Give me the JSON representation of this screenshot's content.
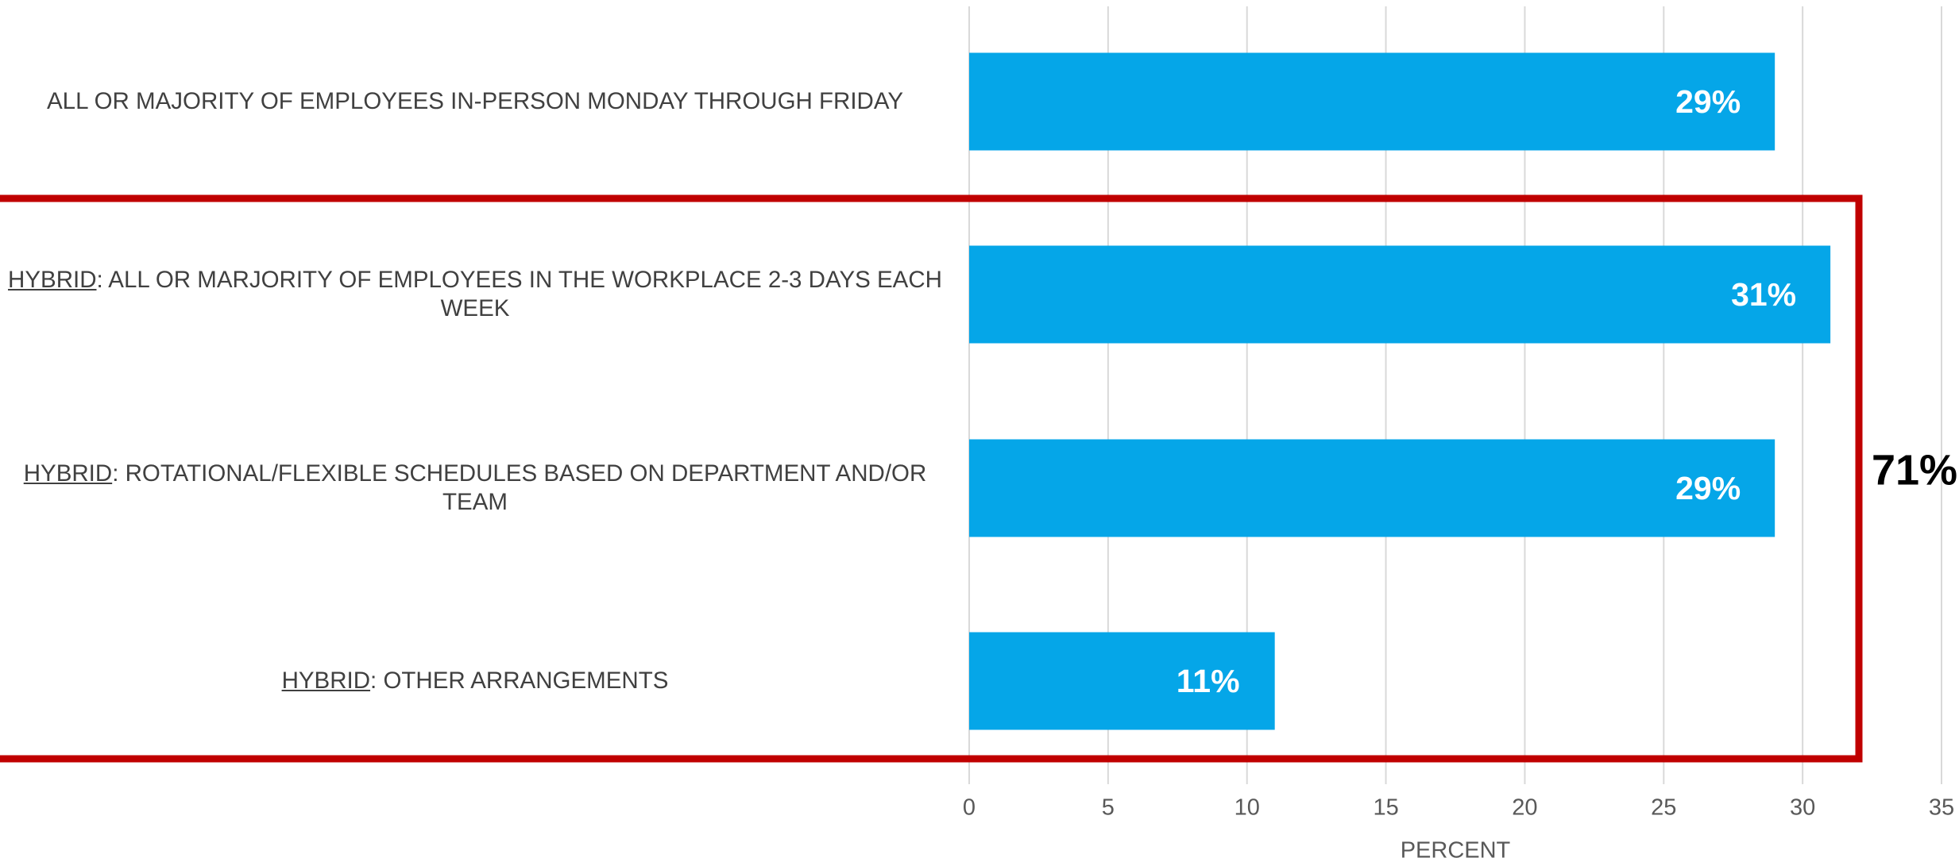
{
  "chart_data": {
    "type": "bar",
    "orientation": "horizontal",
    "categories": [
      "ALL OR MAJORITY OF EMPLOYEES IN-PERSON MONDAY THROUGH FRIDAY",
      "HYBRID: ALL OR MARJORITY OF EMPLOYEES IN THE WORKPLACE 2-3 DAYS EACH WEEK",
      "HYBRID: ROTATIONAL/FLEXIBLE SCHEDULES BASED ON DEPARTMENT AND/OR TEAM",
      "HYBRID: OTHER ARRANGEMENTS"
    ],
    "values": [
      29,
      31,
      29,
      11
    ],
    "value_labels": [
      "29%",
      "31%",
      "29%",
      "11%"
    ],
    "color": "#05a6e8",
    "x_label": "PERCENT",
    "xlim": [
      0,
      35
    ],
    "xticks": [
      0,
      5,
      10,
      15,
      20,
      25,
      30,
      35
    ],
    "grid": true,
    "annotations": [
      {
        "text": "71%",
        "color": "#c00000"
      }
    ]
  }
}
